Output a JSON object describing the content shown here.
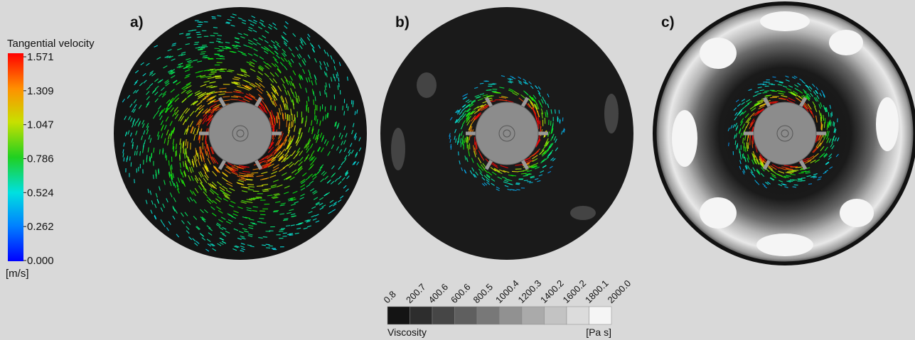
{
  "velocity_legend": {
    "title": "Tangential velocity",
    "ticks": [
      "1.571",
      "1.309",
      "1.047",
      "0.786",
      "0.524",
      "0.262",
      "0.000"
    ],
    "unit": "[m/s]"
  },
  "panels": [
    {
      "label": "a)"
    },
    {
      "label": "b)"
    },
    {
      "label": "c)"
    }
  ],
  "viscosity_legend": {
    "ticks": [
      "0.8",
      "200.7",
      "400.6",
      "600.6",
      "800.5",
      "1000.4",
      "1200.3",
      "1400.2",
      "1600.2",
      "1800.1",
      "2000.0"
    ],
    "title": "Viscosity",
    "unit": "[Pa s]"
  }
}
